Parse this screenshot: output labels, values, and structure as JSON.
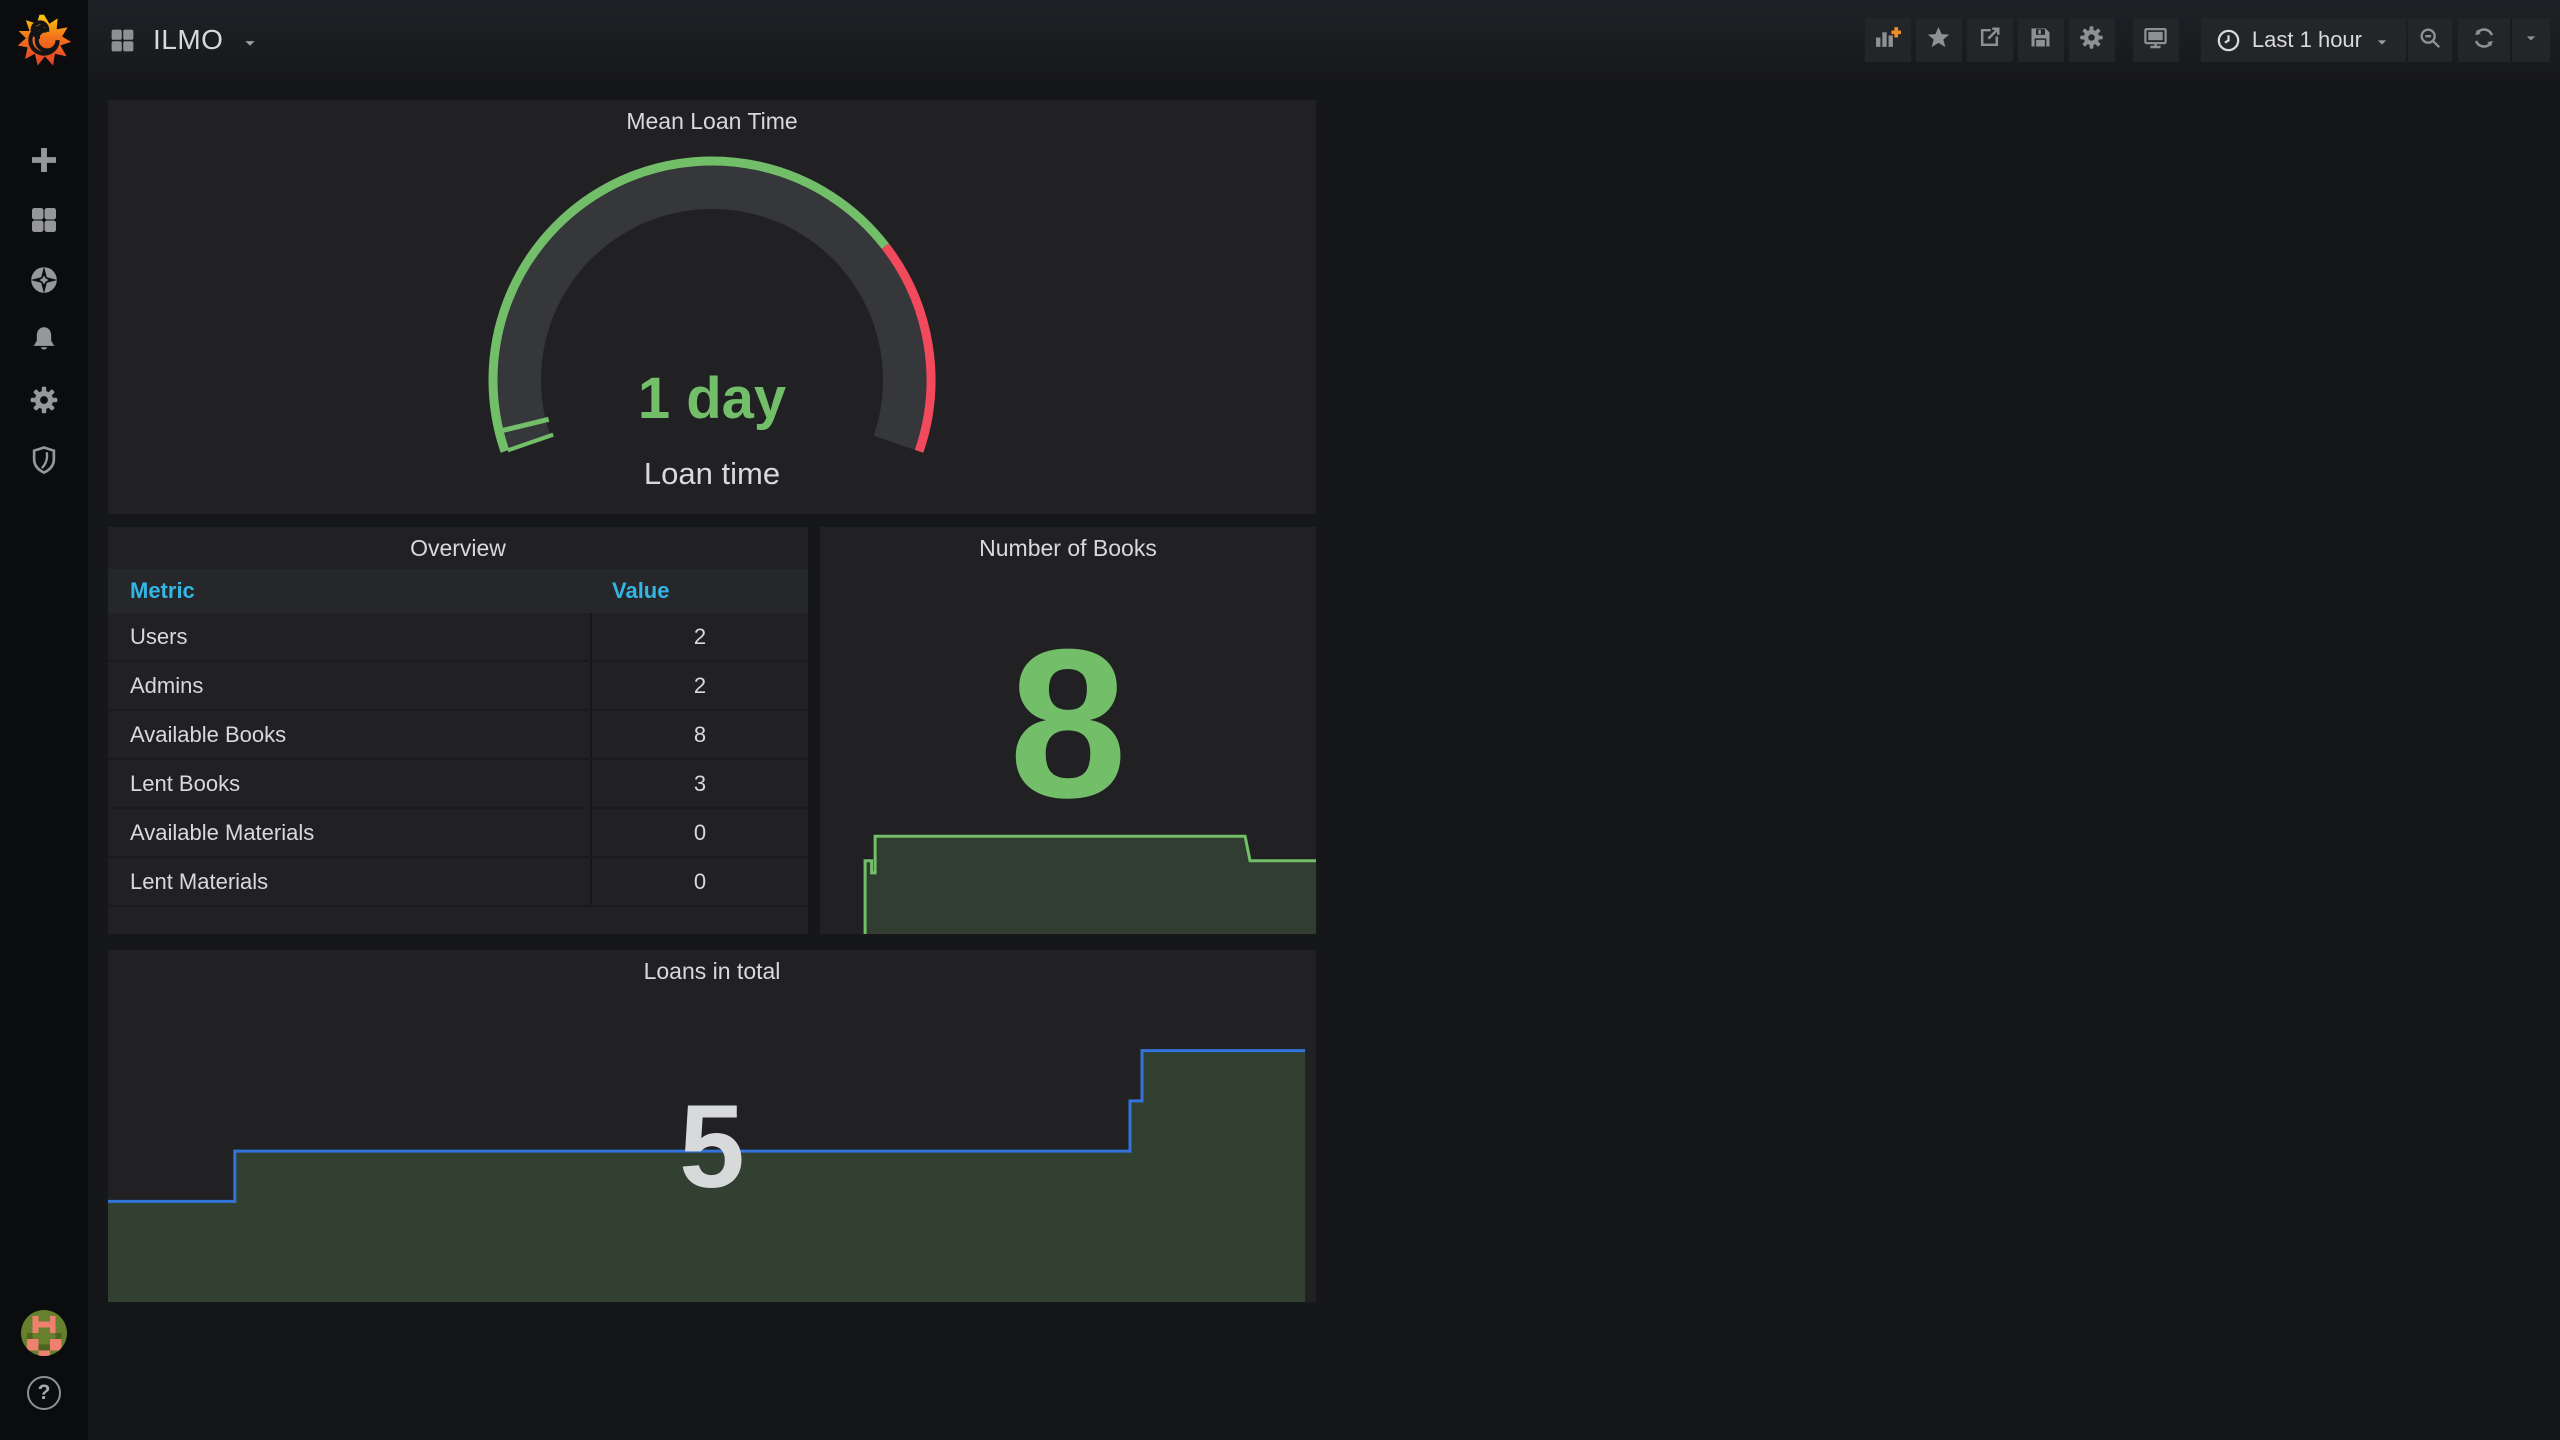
{
  "app": {
    "colors": {
      "page_bg": "#161719",
      "panel_bg": "#212124",
      "sidebar_bg": "#0b0c0e",
      "green": "#73BF69",
      "red": "#F2495C",
      "blue": "#3274D9",
      "table_header_blue": "#33b5e5",
      "text": "#d8d9da"
    }
  },
  "sidebar": {
    "logo_icon": "grafana-logo-icon",
    "items": [
      {
        "icon": "plus-icon"
      },
      {
        "icon": "dashboards-grid-icon"
      },
      {
        "icon": "explore-compass-icon"
      },
      {
        "icon": "alerting-bell-icon"
      },
      {
        "icon": "configuration-gear-icon"
      },
      {
        "icon": "server-admin-shield-icon"
      }
    ],
    "help_glyph": "?"
  },
  "navbar": {
    "dashboard_title": "ILMO",
    "title_icon": "apps-grid-icon",
    "actions": [
      {
        "icon": "add-panel-icon"
      },
      {
        "icon": "star-icon"
      },
      {
        "icon": "share-icon"
      },
      {
        "icon": "save-icon"
      },
      {
        "icon": "settings-gear-icon"
      },
      {
        "icon": "tv-kiosk-icon"
      }
    ],
    "time_picker": {
      "icon": "clock-icon",
      "label": "Last 1 hour"
    },
    "zoom_out_icon": "search-minus-icon",
    "refresh_icon": "refresh-icon"
  },
  "chart_data": [
    {
      "type": "gauge",
      "title": "Mean Loan Time",
      "value_text": "1 day",
      "field_label": "Loan time",
      "value_frac": 0.025,
      "threshold_green_frac": 0.74,
      "start_angle": 199,
      "end_angle": -19,
      "ok_color": "#73BF69",
      "alert_color": "#F2495C",
      "band_color": "#35373a"
    },
    {
      "type": "table",
      "title": "Overview",
      "columns": [
        "Metric",
        "Value"
      ],
      "rows": [
        {
          "metric": "Users",
          "value": "2"
        },
        {
          "metric": "Admins",
          "value": "2"
        },
        {
          "metric": "Available Books",
          "value": "8"
        },
        {
          "metric": "Lent Books",
          "value": "3"
        },
        {
          "metric": "Available Materials",
          "value": "0"
        },
        {
          "metric": "Lent Materials",
          "value": "0"
        }
      ]
    },
    {
      "type": "stat",
      "title": "Number of Books",
      "value": "8",
      "value_color": "#73BF69",
      "sparkline": {
        "svg": "books-sparkline",
        "line_color": "#73BF69",
        "fill_color": "rgba(115,191,105,0.18)",
        "ymax": 8,
        "plot_height_frac": 0.24,
        "points": [
          [
            0.091,
            0
          ],
          [
            0.091,
            6
          ],
          [
            0.104,
            6
          ],
          [
            0.104,
            5
          ],
          [
            0.111,
            5
          ],
          [
            0.111,
            8
          ],
          [
            0.857,
            8
          ],
          [
            0.867,
            6
          ],
          [
            1,
            6
          ]
        ]
      }
    },
    {
      "type": "stat",
      "title": "Loans in total",
      "value": "5",
      "value_color": "#d8d9da",
      "sparkline": {
        "svg": "loans-sparkline",
        "line_color": "#3274D9",
        "fill_color": "rgba(115,191,105,0.2)",
        "ymax": 7,
        "plot_height_frac": 1,
        "points": [
          [
            0,
            2
          ],
          [
            0.105,
            2
          ],
          [
            0.105,
            3
          ],
          [
            0.846,
            3
          ],
          [
            0.846,
            4
          ],
          [
            0.856,
            4
          ],
          [
            0.856,
            5
          ],
          [
            0.991,
            5
          ]
        ]
      }
    }
  ]
}
